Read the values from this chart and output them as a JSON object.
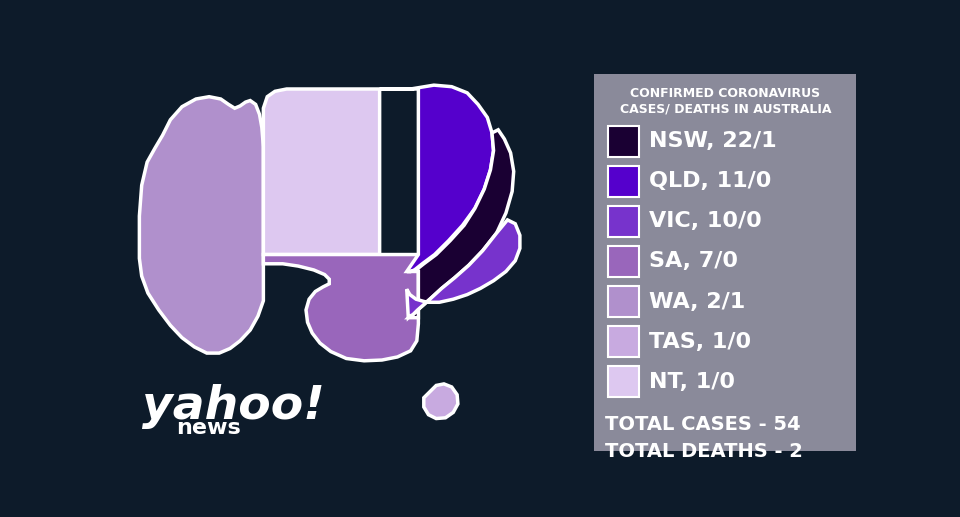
{
  "background_color": "#0d1b2a",
  "legend_bg_color": "#8a8a9a",
  "title_line1": "CONFIRMED CORONAVIRUS",
  "title_line2": "CASES/ DEATHS IN AUSTRALIA",
  "entries": [
    {
      "label": "NSW, 22/1",
      "color": "#1a0033"
    },
    {
      "label": "QLD, 11/0",
      "color": "#5500cc"
    },
    {
      "label": "VIC, 10/0",
      "color": "#7733cc"
    },
    {
      "label": "SA, 7/0",
      "color": "#9966bb"
    },
    {
      "label": "WA, 2/1",
      "color": "#b090cc"
    },
    {
      "label": "TAS, 1/0",
      "color": "#c8aae0"
    },
    {
      "label": "NT, 1/0",
      "color": "#ddc8f0"
    }
  ],
  "total_cases": "TOTAL CASES - 54",
  "total_deaths": "TOTAL DEATHS - 2",
  "state_colors": {
    "WA": "#b090cc",
    "NT": "#ddc8f0",
    "SA": "#9966bb",
    "QLD": "#5500cc",
    "NSW": "#1a0033",
    "VIC": "#7733cc",
    "TAS": "#c8aae0"
  },
  "yahoo_text": "yahoo!",
  "news_text": "news"
}
